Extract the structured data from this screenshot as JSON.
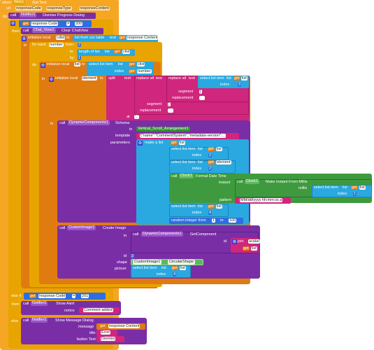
{
  "event": {
    "when": "when",
    "component": "Web1",
    "event": "Got Text"
  },
  "params": [
    "url",
    "responseCode",
    "responseType",
    "responseContent"
  ],
  "do_label": "do",
  "call": "call",
  "in": "in",
  "then": "then",
  "to": "to",
  "by": "by",
  "from": "from",
  "set": "set",
  "get": "get",
  "dismiss": {
    "component": "Notifier1",
    "method": "Dismiss Progress Dialog"
  },
  "if_cond": {
    "var": "response Code",
    "op": "=",
    "num": "200"
  },
  "chat_clear": {
    "component": "Chat_View1",
    "method": "Clear ChatView"
  },
  "init_local": {
    "label": "initialize local",
    "name": "cdist",
    "to": "to",
    "list_csv": "list from csv table",
    "text": "text",
    "get_var": "response Content"
  },
  "for_each": {
    "label": "for each",
    "var": "number",
    "from": "from",
    "from_val": "2",
    "to": "to",
    "length": "length of list",
    "list": "list",
    "get_var": "clist",
    "by": "by",
    "by_val": "1"
  },
  "init_list": {
    "name": "list",
    "select": "select list item",
    "list": "list",
    "get_var": "clist",
    "index": "index",
    "get_idx": "number"
  },
  "init_elem": {
    "label": "initialize local",
    "name": "element",
    "split": "split",
    "text": "text",
    "replace_all": "replace all",
    "replace_all_text": "text",
    "select": "select list item",
    "list": "list",
    "get_var": "list",
    "index": "index",
    "idx_val": "3",
    "segment": "segment",
    "seg1": "[",
    "replacement": "replacement",
    "rep1": "",
    "seg2": "]",
    "rep2": "",
    "at": "at",
    "at_val": "\",\""
  },
  "schema": {
    "component": "DynamicComponents1",
    "method": "Schema",
    "in": "in",
    "in_val": "Vertical_Scroll_Arrangement1",
    "template": "template",
    "template_val": "{\"name\":\"CommentSystem\",\"metadata-version\":...",
    "parameters": "parameters"
  },
  "make_list": "make a list",
  "rows": [
    {
      "select": "select list item",
      "list": "list",
      "get_var": "list",
      "index": "index",
      "idx": "2"
    },
    {
      "select": "select list item",
      "list": "list",
      "get_var": "element",
      "index": "index",
      "idx": "2"
    }
  ],
  "clock": {
    "component": "Clock1",
    "method": "Formal Date Time",
    "instant": "instant",
    "instant_method": "Make Instant From Millis",
    "clock2": "Clock1",
    "millis": "millis",
    "select": "select list item",
    "list": "list",
    "get_var": "list",
    "index": "index",
    "idx": "1",
    "pattern": "pattern",
    "pattern_val": "MM/dd/yyyy hh:mm:ss a"
  },
  "row3": {
    "select": "select list item",
    "list": "list",
    "get_var": "list",
    "index": "index",
    "idx": "4"
  },
  "random": {
    "label": "random integer from",
    "from_val": "1",
    "to": "to",
    "to_val": "100"
  },
  "create_image": {
    "component": "CustomImage1",
    "method": "Create Image",
    "in": "in",
    "get_comp": "DynamicComponents1",
    "get_comp_method": "GetComponent",
    "id": "id",
    "join": "join",
    "join1": "avatar",
    "join_var": "list",
    "id_label": "id",
    "id_val": "2",
    "shape": "shape",
    "shape_comp": "CustomImage1",
    "shape_val": "CircularShape",
    "picture": "picture",
    "select": "select list item",
    "list": "list",
    "get_var": "list",
    "index": "index",
    "idx": "4"
  },
  "else_if": {
    "label": "else if",
    "var": "response Code",
    "op": "=",
    "num": "201"
  },
  "show_alert": {
    "component": "Notifier1",
    "method": "Show Alert",
    "notice": "notice",
    "notice_val": "Comment added"
  },
  "else_label": "else",
  "msg_dialog": {
    "component": "Notifier1",
    "method": "Show Message Dialog",
    "message": "message",
    "msg_var": "response Content",
    "title": "title",
    "title_val": "Error",
    "button_text": "button Text",
    "button_val": "Dismiss"
  },
  "colors": {
    "event": "#f5a623",
    "control": "#e8a400",
    "list": "#29a9e0",
    "var": "#e07b10",
    "text": "#d0267d",
    "math": "#2d6fe0",
    "component": "#7a2ea6",
    "green": "#2f8f2f"
  }
}
